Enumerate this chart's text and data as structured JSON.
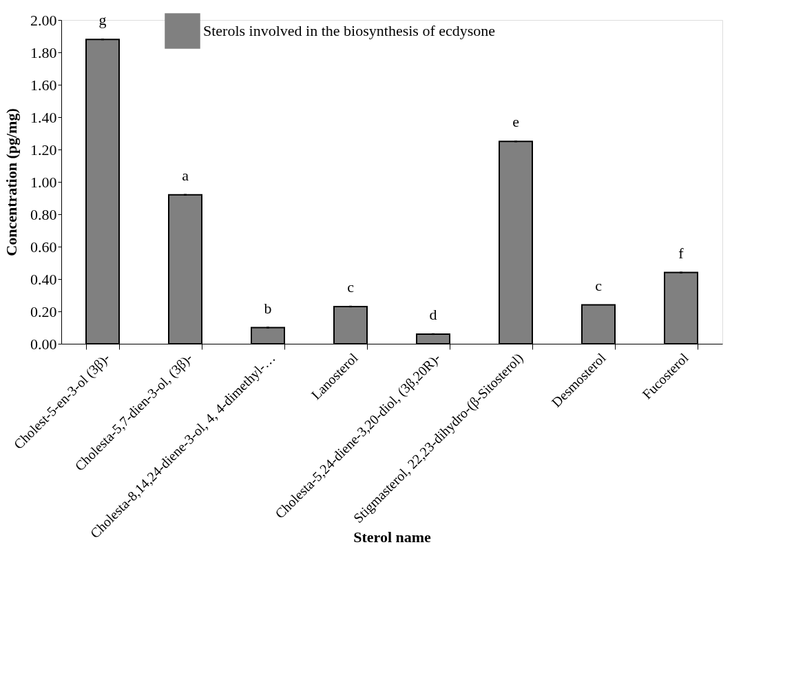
{
  "chart_data": {
    "type": "bar",
    "xlabel": "Sterol name",
    "ylabel": "Concentration (pg/mg)",
    "categories": [
      "Cholest-5-en-3-ol (3β)-",
      "Cholesta-5,7-dien-3-ol, (3β)-",
      "Cholesta-8,14,24-diene-3-ol, 4, 4-dimethyl-…",
      "Lanosterol",
      "Cholesta-5,24-diene-3,20-diol, (3β,20R)-",
      "Stigmasterol, 22,23-dihydro-(β-Sitosterol)",
      "Desmosterol",
      "Fucosterol"
    ],
    "series": [
      {
        "name": "Sterols involved in the biosynthesis of ecdysone",
        "color": "#808080",
        "values": [
          1.88,
          0.92,
          0.1,
          0.23,
          0.06,
          1.25,
          0.24,
          0.44
        ],
        "errors": [
          0.005,
          0.005,
          0.005,
          0.005,
          0.005,
          0.005,
          null,
          0.005
        ]
      }
    ],
    "ylim": [
      0,
      2
    ],
    "yticks": [
      {
        "value": 0,
        "label": "0.00"
      },
      {
        "value": 0.2,
        "label": "0.20"
      },
      {
        "value": 0.4,
        "label": "0.40"
      },
      {
        "value": 0.6,
        "label": "0.60"
      },
      {
        "value": 0.8,
        "label": "0.80"
      },
      {
        "value": 1,
        "label": "1.00"
      },
      {
        "value": 1.2,
        "label": "1.20"
      },
      {
        "value": 1.4,
        "label": "1.40"
      },
      {
        "value": 1.6,
        "label": "1.60"
      },
      {
        "value": 1.8,
        "label": "1.80"
      },
      {
        "value": 2,
        "label": "2.00"
      }
    ],
    "annotations": [
      {
        "text": "g",
        "x": "Cholest-5-en-3-ol (3β)-",
        "y": 1.88
      },
      {
        "text": "a",
        "x": "Cholesta-5,7-dien-3-ol, (3β)-",
        "y": 0.92
      },
      {
        "text": "b",
        "x": "Cholesta-8,14,24-diene-3-ol, 4, 4-dimethyl-…",
        "y": 0.1
      },
      {
        "text": "c",
        "x": "Lanosterol",
        "y": 0.23
      },
      {
        "text": "d",
        "x": "Cholesta-5,24-diene-3,20-diol, (3β,20R)-",
        "y": 0.06
      },
      {
        "text": "e",
        "x": "Stigmasterol, 22,23-dihydro-(β-Sitosterol)",
        "y": 1.25
      },
      {
        "text": "c",
        "x": "Desmosterol",
        "y": 0.24
      },
      {
        "text": "f",
        "x": "Fucosterol",
        "y": 0.44
      }
    ],
    "legend": "top",
    "grid": false
  }
}
